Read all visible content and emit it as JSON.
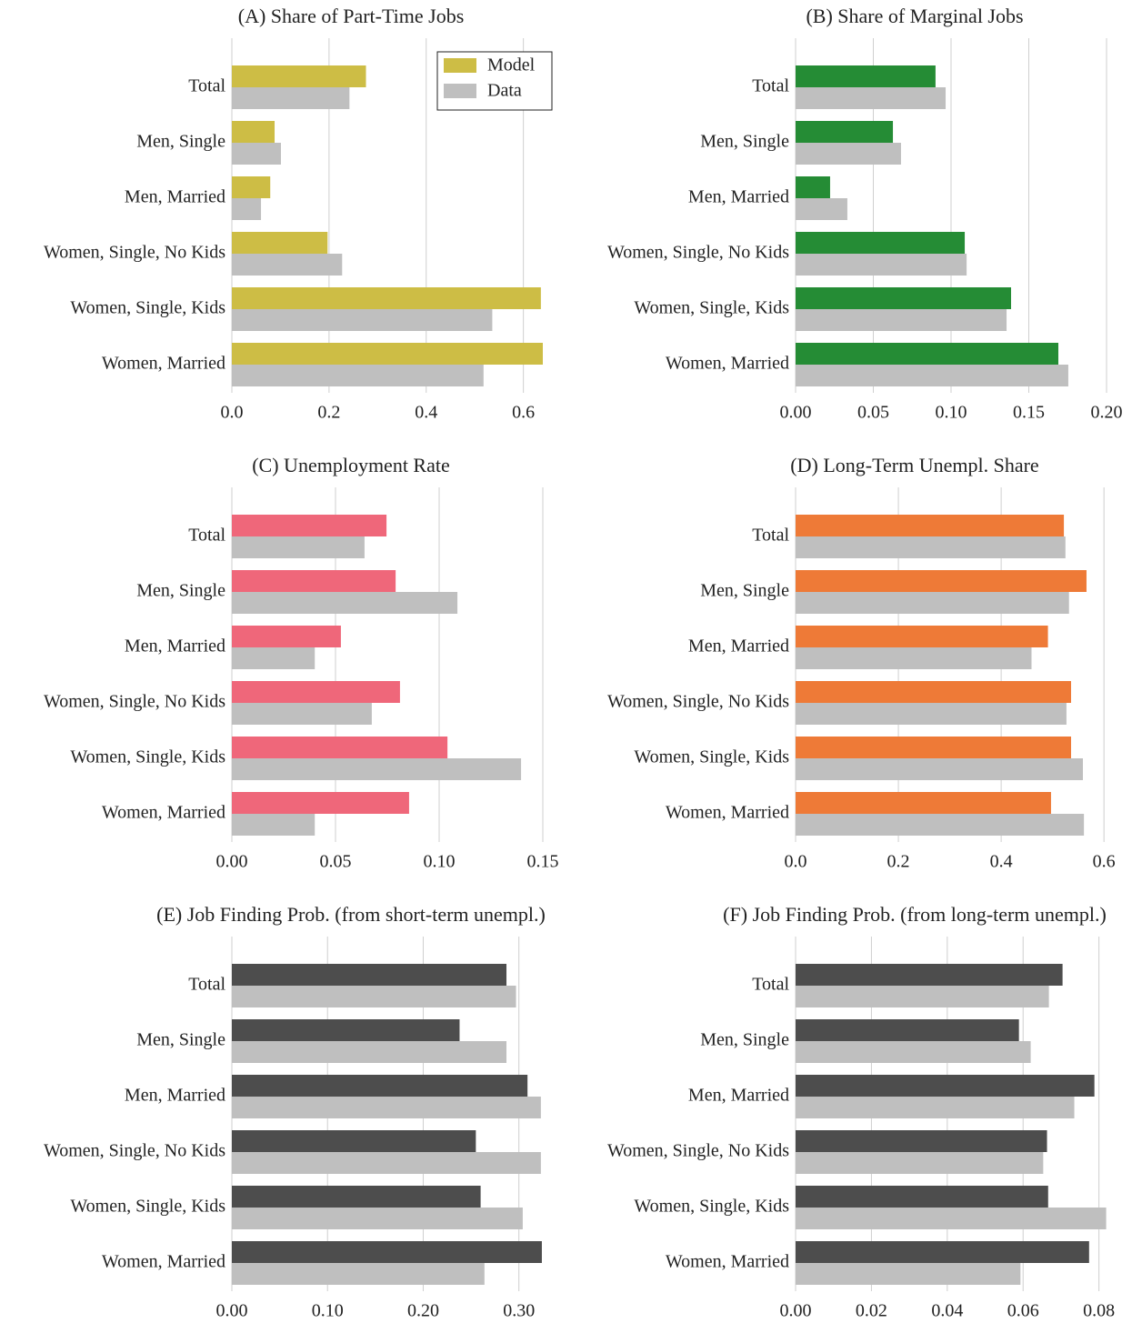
{
  "chart_data": [
    {
      "type": "barh",
      "title": "(A) Share of Part-Time Jobs",
      "categories": [
        "Total",
        "Men, Single",
        "Men, Married",
        "Women, Single, No Kids",
        "Women, Single, Kids",
        "Women, Married"
      ],
      "series": [
        {
          "name": "Model",
          "color": "#cdbd45",
          "values": [
            0.276,
            0.088,
            0.079,
            0.197,
            0.636,
            0.64
          ]
        },
        {
          "name": "Data",
          "color": "#bfbfbf",
          "values": [
            0.242,
            0.101,
            0.06,
            0.227,
            0.536,
            0.518
          ]
        }
      ],
      "xlim": [
        0,
        0.64
      ],
      "xticks": [
        {
          "value": 0,
          "label": "0.0"
        },
        0.2,
        0.4,
        0.6
      ],
      "grid": true,
      "legend": "upper right"
    },
    {
      "type": "barh",
      "title": "(B) Share of Marginal Jobs",
      "categories": [
        "Total",
        "Men, Single",
        "Men, Married",
        "Women, Single, No Kids",
        "Women, Single, Kids",
        "Women, Married"
      ],
      "series": [
        {
          "color": "#258c35",
          "values": [
            0.09,
            0.0626,
            0.0222,
            0.1088,
            0.1386,
            0.169
          ]
        },
        {
          "color": "#bfbfbf",
          "values": [
            0.0965,
            0.0678,
            0.0333,
            0.11,
            0.1357,
            0.1754
          ]
        }
      ],
      "xlim": [
        0,
        0.2
      ],
      "xticks": [
        {
          "value": 0,
          "label": "0.00"
        },
        0.05,
        {
          "value": 0.1,
          "label": "0.10"
        },
        0.15,
        {
          "value": 0.2,
          "label": "0.20"
        }
      ],
      "grid": true
    },
    {
      "type": "barh",
      "title": "(C) Unemployment Rate",
      "categories": [
        "Total",
        "Men, Single",
        "Men, Married",
        "Women, Single, No Kids",
        "Women, Single, Kids",
        "Women, Married"
      ],
      "series": [
        {
          "color": "#ef677a",
          "values": [
            0.0746,
            0.079,
            0.0526,
            0.0811,
            0.104,
            0.0855
          ]
        },
        {
          "color": "#bfbfbf",
          "values": [
            0.064,
            0.1088,
            0.04,
            0.0675,
            0.1395,
            0.04
          ]
        }
      ],
      "xlim": [
        0,
        0.15
      ],
      "xticks": [
        {
          "value": 0,
          "label": "0.00"
        },
        0.05,
        {
          "value": 0.1,
          "label": "0.10"
        },
        0.15
      ],
      "grid": true
    },
    {
      "type": "barh",
      "title": "(D) Long-Term Unempl. Share",
      "categories": [
        "Total",
        "Men, Single",
        "Men, Married",
        "Women, Single, No Kids",
        "Women, Single, Kids",
        "Women, Married"
      ],
      "series": [
        {
          "color": "#ee7a37",
          "values": [
            0.522,
            0.566,
            0.491,
            0.536,
            0.536,
            0.497
          ]
        },
        {
          "color": "#bfbfbf",
          "values": [
            0.525,
            0.532,
            0.459,
            0.527,
            0.559,
            0.561
          ]
        }
      ],
      "xlim": [
        0,
        0.605
      ],
      "xticks": [
        {
          "value": 0,
          "label": "0.0"
        },
        0.2,
        0.4,
        0.6
      ],
      "grid": true
    },
    {
      "type": "barh",
      "title": "(E) Job Finding Prob. (from short-term unempl.)",
      "categories": [
        "Total",
        "Men, Single",
        "Men, Married",
        "Women, Single, No Kids",
        "Women, Single, Kids",
        "Women, Married"
      ],
      "series": [
        {
          "color": "#4d4d4d",
          "values": [
            0.287,
            0.238,
            0.309,
            0.255,
            0.26,
            0.324
          ]
        },
        {
          "color": "#bfbfbf",
          "values": [
            0.297,
            0.287,
            0.323,
            0.323,
            0.304,
            0.264
          ]
        }
      ],
      "xlim": [
        0,
        0.325
      ],
      "xticks": [
        {
          "value": 0,
          "label": "0.00"
        },
        {
          "value": 0.1,
          "label": "0.10"
        },
        {
          "value": 0.2,
          "label": "0.20"
        },
        {
          "value": 0.3,
          "label": "0.30"
        }
      ],
      "grid": true
    },
    {
      "type": "barh",
      "title": "(F) Job Finding Prob. (from long-term unempl.)",
      "categories": [
        "Total",
        "Men, Single",
        "Men, Married",
        "Women, Single, No Kids",
        "Women, Single, Kids",
        "Women, Married"
      ],
      "series": [
        {
          "color": "#4d4d4d",
          "values": [
            0.0704,
            0.0589,
            0.0788,
            0.0663,
            0.0666,
            0.0774
          ]
        },
        {
          "color": "#bfbfbf",
          "values": [
            0.0668,
            0.062,
            0.0735,
            0.0653,
            0.0819,
            0.0593
          ]
        }
      ],
      "xlim": [
        0,
        0.082
      ],
      "xticks": [
        {
          "value": 0,
          "label": "0.00"
        },
        0.02,
        0.04,
        0.06,
        0.08
      ],
      "grid": true
    }
  ]
}
